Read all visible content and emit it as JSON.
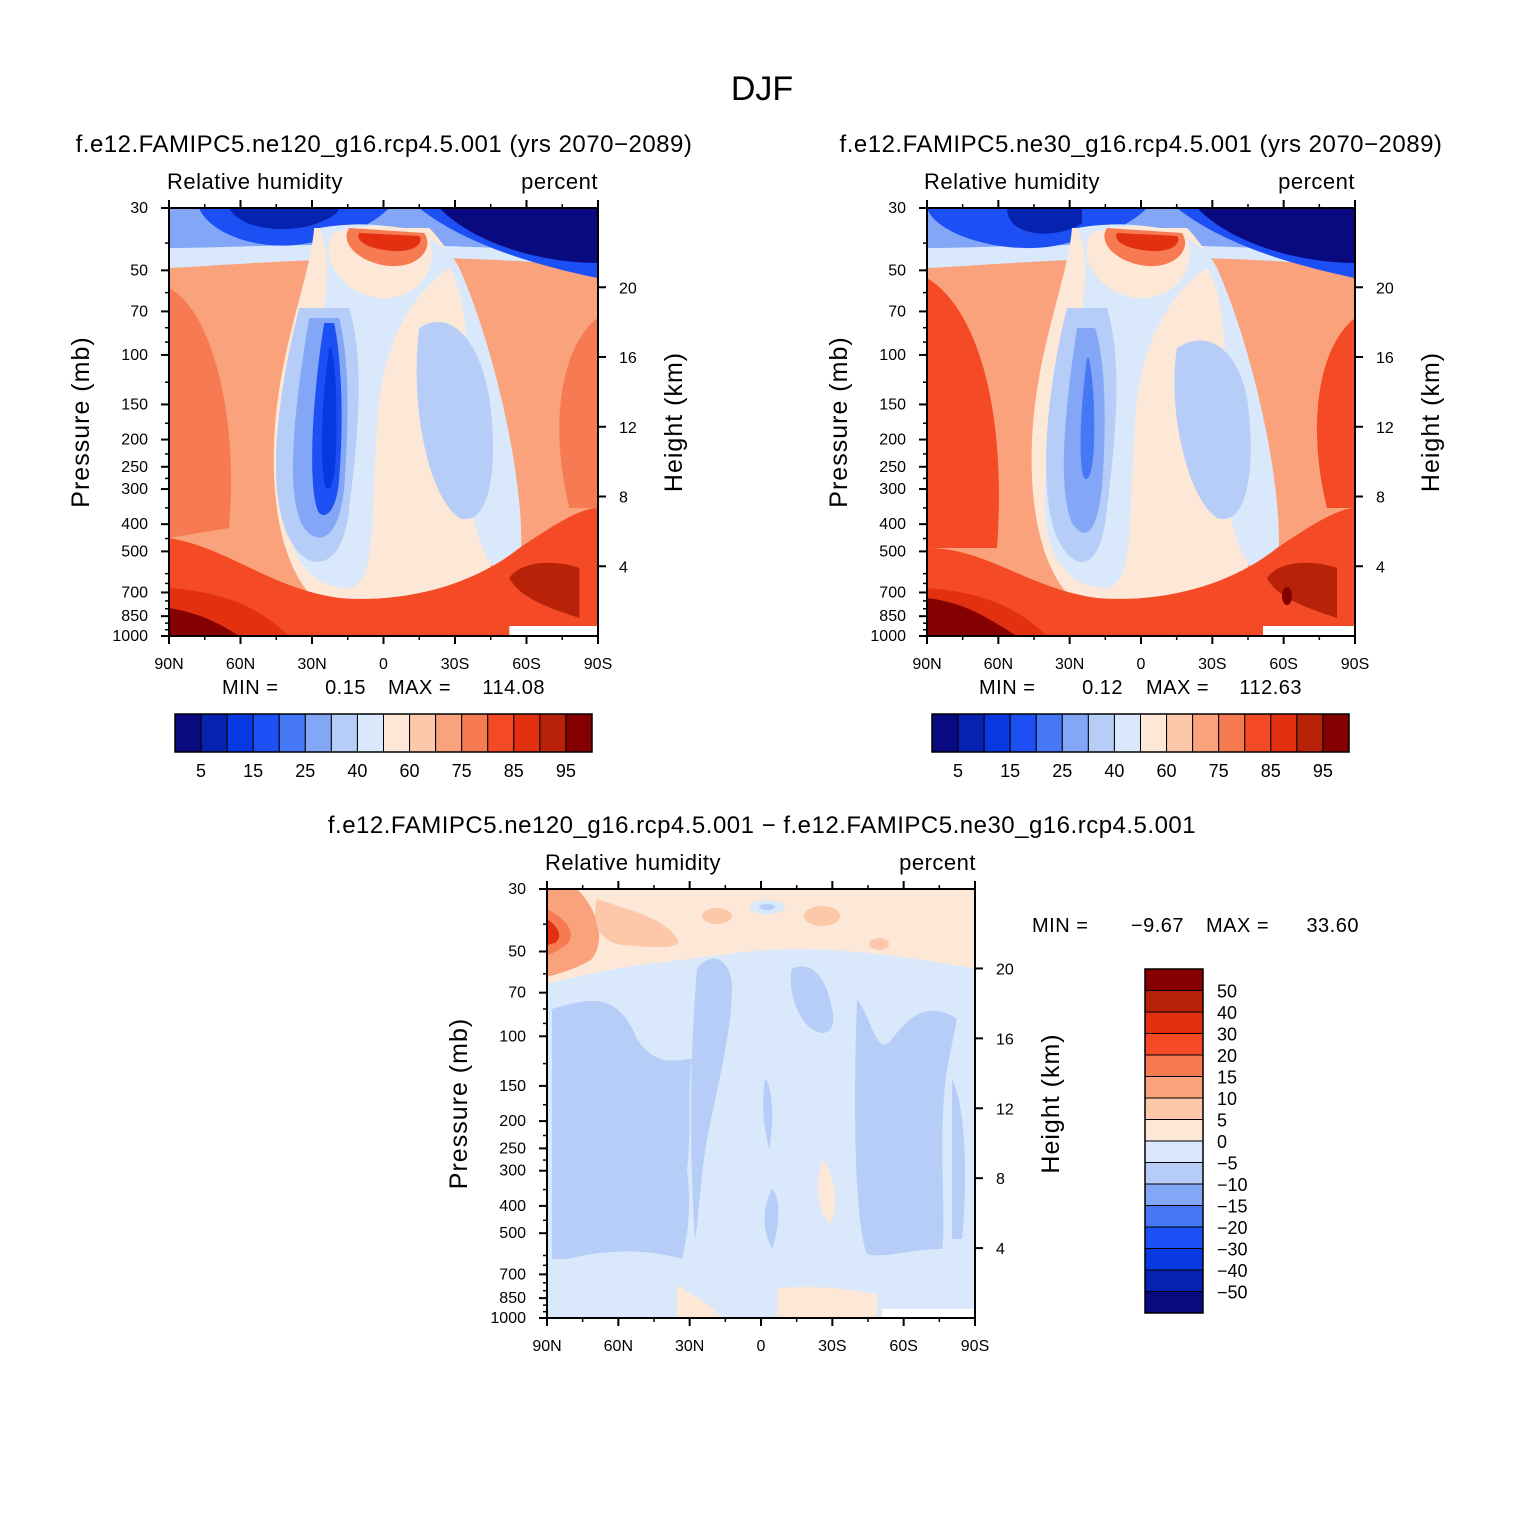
{
  "title": "DJF",
  "colors": {
    "abs": [
      "#0a0a80",
      "#0623b0",
      "#0838e0",
      "#1c4ff4",
      "#4677f5",
      "#83a6f7",
      "#b6cdf8",
      "#d9e8fb",
      "#fde8d8",
      "#fdc8aa",
      "#f9a27c",
      "#f67a52",
      "#f44a26",
      "#e23010",
      "#b82208",
      "#850000"
    ],
    "diff": [
      "#0a0a80",
      "#0623b0",
      "#0838e0",
      "#1c4ff4",
      "#4677f5",
      "#83a6f7",
      "#b6cdf8",
      "#d9e8fb",
      "#fde8d8",
      "#fdc8aa",
      "#f9a27c",
      "#f67a52",
      "#f44a26",
      "#e23010",
      "#b82208",
      "#850000"
    ]
  },
  "panels": [
    {
      "id": "ne120",
      "case_title": "f.e12.FAMIPC5.ne120_g16.rcp4.5.001 (yrs 2070-2089)",
      "field": "Relative humidity",
      "units": "percent",
      "ylabel": "Pressure (mb)",
      "ylabel_right": "Height (km)",
      "min_label": "MIN =",
      "min_value": "0.15",
      "max_label": "MAX =",
      "max_value": "114.08",
      "colorbar_labels": [
        "5",
        "15",
        "25",
        "40",
        "60",
        "75",
        "85",
        "95"
      ]
    },
    {
      "id": "ne30",
      "case_title": "f.e12.FAMIPC5.ne30_g16.rcp4.5.001 (yrs 2070-2089)",
      "field": "Relative humidity",
      "units": "percent",
      "ylabel": "Pressure (mb)",
      "ylabel_right": "Height (km)",
      "min_label": "MIN =",
      "min_value": "0.12",
      "max_label": "MAX =",
      "max_value": "112.63",
      "colorbar_labels": [
        "5",
        "15",
        "25",
        "40",
        "60",
        "75",
        "85",
        "95"
      ]
    },
    {
      "id": "diff",
      "case_title": "f.e12.FAMIPC5.ne120_g16.rcp4.5.001 - f.e12.FAMIPC5.ne30_g16.rcp4.5.001",
      "field": "Relative humidity",
      "units": "percent",
      "ylabel": "Pressure (mb)",
      "ylabel_right": "Height (km)",
      "min_label": "MIN =",
      "min_value": "-9.67",
      "max_label": "MAX =",
      "max_value": "33.60",
      "colorbar_labels": [
        "50",
        "40",
        "30",
        "20",
        "15",
        "10",
        "5",
        "0",
        "-5",
        "-10",
        "-15",
        "-20",
        "-30",
        "-40",
        "-50"
      ]
    }
  ],
  "chart_data": [
    {
      "type": "heatmap",
      "title": "f.e12.FAMIPC5.ne120_g16.rcp4.5.001 (yrs 2070-2089)",
      "xlabel": "",
      "ylabel": "Pressure (mb)",
      "x_ticks": [
        "90N",
        "60N",
        "30N",
        "0",
        "30S",
        "60S",
        "90S"
      ],
      "y_ticks": [
        30,
        50,
        70,
        100,
        150,
        200,
        250,
        300,
        400,
        500,
        700,
        850,
        1000
      ],
      "y_right_ticks": [
        20,
        16,
        12,
        8,
        4
      ],
      "contour_levels": [
        5,
        10,
        15,
        20,
        25,
        30,
        40,
        50,
        60,
        70,
        75,
        80,
        85,
        90,
        95
      ],
      "min": 0.15,
      "max": 114.08
    },
    {
      "type": "heatmap",
      "title": "f.e12.FAMIPC5.ne30_g16.rcp4.5.001 (yrs 2070-2089)",
      "xlabel": "",
      "ylabel": "Pressure (mb)",
      "x_ticks": [
        "90N",
        "60N",
        "30N",
        "0",
        "30S",
        "60S",
        "90S"
      ],
      "y_ticks": [
        30,
        50,
        70,
        100,
        150,
        200,
        250,
        300,
        400,
        500,
        700,
        850,
        1000
      ],
      "y_right_ticks": [
        20,
        16,
        12,
        8,
        4
      ],
      "contour_levels": [
        5,
        10,
        15,
        20,
        25,
        30,
        40,
        50,
        60,
        70,
        75,
        80,
        85,
        90,
        95
      ],
      "min": 0.12,
      "max": 112.63
    },
    {
      "type": "heatmap",
      "title": "f.e12.FAMIPC5.ne120_g16.rcp4.5.001 - f.e12.FAMIPC5.ne30_g16.rcp4.5.001",
      "xlabel": "",
      "ylabel": "Pressure (mb)",
      "x_ticks": [
        "90N",
        "60N",
        "30N",
        "0",
        "30S",
        "60S",
        "90S"
      ],
      "y_ticks": [
        30,
        50,
        70,
        100,
        150,
        200,
        250,
        300,
        400,
        500,
        700,
        850,
        1000
      ],
      "y_right_ticks": [
        20,
        16,
        12,
        8,
        4
      ],
      "contour_levels": [
        -50,
        -40,
        -30,
        -20,
        -15,
        -10,
        -5,
        0,
        5,
        10,
        15,
        20,
        30,
        40,
        50
      ],
      "min": -9.67,
      "max": 33.6
    }
  ]
}
